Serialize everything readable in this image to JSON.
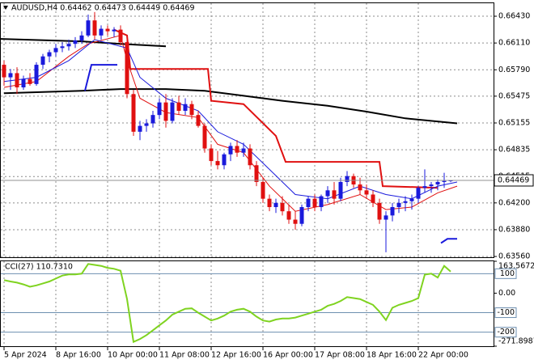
{
  "chart_data": [
    {
      "type": "candlestick",
      "title": "AUDUSD,H4  0.64462 0.64473 0.64449 0.64469",
      "up_color": "#1a1adc",
      "down_color": "#e01010",
      "open": [
        0.6585,
        0.657,
        0.6575,
        0.6558,
        0.6568,
        0.6562,
        0.6585,
        0.6595,
        0.66,
        0.6605,
        0.6607,
        0.661,
        0.6614,
        0.662,
        0.6638,
        0.662,
        0.6628,
        0.6625,
        0.6627,
        0.6612,
        0.655,
        0.6505,
        0.6512,
        0.6515,
        0.6525,
        0.654,
        0.6518,
        0.654,
        0.653,
        0.6538,
        0.6525,
        0.6512,
        0.6485,
        0.647,
        0.6465,
        0.6478,
        0.6488,
        0.648,
        0.6485,
        0.6465,
        0.6445,
        0.6425,
        0.6415,
        0.642,
        0.641,
        0.64,
        0.6395,
        0.6415,
        0.6425,
        0.6415,
        0.6428,
        0.6435,
        0.6425,
        0.6445,
        0.6452,
        0.6442,
        0.6435,
        0.643,
        0.642,
        0.64,
        0.6405,
        0.6415,
        0.642,
        0.6422,
        0.6425,
        0.6438,
        0.644,
        0.6442,
        0.6445,
        0.64462
      ],
      "high": [
        0.659,
        0.658,
        0.6582,
        0.6572,
        0.6575,
        0.6588,
        0.6598,
        0.6603,
        0.661,
        0.6612,
        0.6615,
        0.6618,
        0.6625,
        0.6645,
        0.6648,
        0.6632,
        0.6632,
        0.663,
        0.6632,
        0.6615,
        0.6555,
        0.6518,
        0.652,
        0.653,
        0.6545,
        0.655,
        0.6545,
        0.6548,
        0.6545,
        0.6542,
        0.653,
        0.6515,
        0.649,
        0.6482,
        0.648,
        0.6492,
        0.6495,
        0.6492,
        0.649,
        0.647,
        0.645,
        0.643,
        0.6425,
        0.6428,
        0.6418,
        0.641,
        0.6418,
        0.6428,
        0.643,
        0.643,
        0.644,
        0.6445,
        0.645,
        0.6458,
        0.6455,
        0.645,
        0.6442,
        0.6435,
        0.6425,
        0.641,
        0.642,
        0.6425,
        0.6428,
        0.643,
        0.644,
        0.646,
        0.6445,
        0.6448,
        0.6456,
        0.64473
      ],
      "low": [
        0.656,
        0.6555,
        0.655,
        0.6555,
        0.656,
        0.656,
        0.658,
        0.6588,
        0.6595,
        0.66,
        0.6602,
        0.6605,
        0.661,
        0.6618,
        0.6615,
        0.6615,
        0.662,
        0.6618,
        0.6608,
        0.6545,
        0.65,
        0.6495,
        0.6505,
        0.651,
        0.652,
        0.651,
        0.6515,
        0.6525,
        0.6525,
        0.652,
        0.651,
        0.648,
        0.6465,
        0.646,
        0.646,
        0.647,
        0.6475,
        0.6475,
        0.646,
        0.644,
        0.642,
        0.641,
        0.6408,
        0.6405,
        0.6395,
        0.6388,
        0.6392,
        0.641,
        0.641,
        0.641,
        0.642,
        0.6418,
        0.6422,
        0.644,
        0.6438,
        0.643,
        0.6425,
        0.6415,
        0.6395,
        0.6361,
        0.6398,
        0.6408,
        0.641,
        0.6412,
        0.642,
        0.6432,
        0.6432,
        0.6435,
        0.6438,
        0.64449
      ],
      "close": [
        0.657,
        0.6575,
        0.6558,
        0.6568,
        0.6562,
        0.6585,
        0.6595,
        0.66,
        0.6605,
        0.6607,
        0.661,
        0.6614,
        0.662,
        0.6638,
        0.662,
        0.6628,
        0.6625,
        0.6627,
        0.6612,
        0.655,
        0.6505,
        0.6512,
        0.6515,
        0.6525,
        0.654,
        0.6518,
        0.654,
        0.653,
        0.6538,
        0.6525,
        0.6512,
        0.6485,
        0.647,
        0.6465,
        0.6478,
        0.6488,
        0.648,
        0.6485,
        0.6465,
        0.6445,
        0.6425,
        0.6415,
        0.642,
        0.641,
        0.64,
        0.6395,
        0.6415,
        0.6425,
        0.6415,
        0.6428,
        0.6435,
        0.6425,
        0.6445,
        0.6452,
        0.6442,
        0.6435,
        0.643,
        0.642,
        0.64,
        0.6405,
        0.6415,
        0.642,
        0.6422,
        0.6425,
        0.6438,
        0.644,
        0.6442,
        0.6445,
        0.64462,
        0.64469
      ],
      "lines": [
        {
          "color": "#000000",
          "x": [
            -1,
            12,
            18,
            25
          ],
          "values": [
            0.6616,
            0.6613,
            0.661,
            0.6607
          ]
        },
        {
          "color": "#000000",
          "x": [
            0,
            12,
            18,
            25,
            31,
            37,
            43,
            50,
            56,
            62,
            70
          ],
          "values": [
            0.6551,
            0.6554,
            0.6556,
            0.6556,
            0.6554,
            0.6548,
            0.6542,
            0.6536,
            0.6529,
            0.6521,
            0.6515
          ]
        },
        {
          "color": "#e01010",
          "x": [
            17,
            19,
            19.5,
            31.5,
            32,
            37,
            42,
            43.5,
            58,
            58.5,
            67
          ],
          "values": [
            0.6627,
            0.662,
            0.658,
            0.658,
            0.6542,
            0.6538,
            0.65,
            0.6469,
            0.6469,
            0.644,
            0.6438
          ]
        },
        {
          "color": "#1a1adc",
          "x": [
            12.5,
            13.5,
            17.5,
            18,
            67.5,
            68.5,
            70
          ],
          "values": [
            0.6554,
            0.6585,
            0.6585,
            null,
            0.6372,
            0.6377,
            0.6377
          ]
        },
        {
          "color": "#e01010",
          "x": [
            0,
            5,
            10,
            13,
            18,
            19,
            21,
            25,
            30,
            33,
            37,
            41,
            45,
            50,
            55,
            59,
            63,
            67,
            70
          ],
          "values": [
            0.6558,
            0.6565,
            0.6595,
            0.661,
            0.662,
            0.659,
            0.6545,
            0.6528,
            0.6522,
            0.649,
            0.648,
            0.644,
            0.641,
            0.6418,
            0.643,
            0.6412,
            0.6415,
            0.6432,
            0.644
          ]
        },
        {
          "color": "#1a1adc",
          "x": [
            0,
            5,
            10,
            14,
            19,
            21,
            25,
            30,
            33,
            37,
            41,
            45,
            50,
            55,
            59,
            63,
            67,
            70
          ],
          "values": [
            0.6565,
            0.657,
            0.659,
            0.6615,
            0.6605,
            0.657,
            0.6545,
            0.653,
            0.6505,
            0.649,
            0.646,
            0.643,
            0.6425,
            0.644,
            0.643,
            0.6425,
            0.644,
            0.6445
          ]
        }
      ],
      "last_price": 0.64469,
      "ylim": [
        0.63551,
        0.66585
      ],
      "yticks": [
        {
          "value": 0.6643,
          "label": "0.66430"
        },
        {
          "value": 0.6611,
          "label": "0.66110"
        },
        {
          "value": 0.6579,
          "label": "0.65790"
        },
        0.65475,
        0.65155,
        0.64835,
        0.64515,
        {
          "value": 0.642,
          "label": "0.64200"
        },
        {
          "value": 0.6388,
          "label": "0.63880"
        },
        {
          "value": 0.6356,
          "label": "0.63560"
        }
      ],
      "xticks": [
        {
          "value": 0,
          "label": "5 Apr 2024"
        },
        {
          "value": 8,
          "label": "8 Apr 16:00"
        },
        {
          "value": 16,
          "label": "10 Apr 00:00"
        },
        {
          "value": 24,
          "label": "11 Apr 08:00"
        },
        {
          "value": 32,
          "label": "12 Apr 16:00"
        },
        {
          "value": 40,
          "label": "16 Apr 00:00"
        },
        {
          "value": 48,
          "label": "17 Apr 08:00"
        },
        {
          "value": 56,
          "label": "18 Apr 16:00"
        },
        {
          "value": 64,
          "label": "22 Apr 00:00"
        }
      ],
      "grid": true
    },
    {
      "type": "line",
      "title": "CCI(27) 110.7310",
      "color": "#7fd320",
      "values": [
        67,
        60,
        54,
        45,
        33,
        40,
        50,
        60,
        75,
        90,
        96,
        96,
        100,
        150,
        145,
        140,
        130,
        125,
        115,
        -30,
        -250,
        -235,
        -215,
        -190,
        -165,
        -140,
        -110,
        -95,
        -80,
        -78,
        -100,
        -120,
        -140,
        -130,
        -115,
        -95,
        -85,
        -80,
        -95,
        -120,
        -140,
        -146,
        -135,
        -130,
        -130,
        -125,
        -115,
        -105,
        -95,
        -85,
        -65,
        -55,
        -40,
        -20,
        -25,
        -30,
        -45,
        -60,
        -95,
        -138,
        -75,
        -60,
        -50,
        -40,
        -25,
        95,
        100,
        80,
        140,
        110.731
      ],
      "ylim": [
        -271.8987,
        163.5672
      ],
      "yticks": [
        163.5672,
        {
          "value": 0,
          "label": "0.00"
        },
        -271.8987
      ],
      "levels": [
        100,
        -100,
        -200
      ],
      "level_color": "#6d8fb0"
    }
  ]
}
